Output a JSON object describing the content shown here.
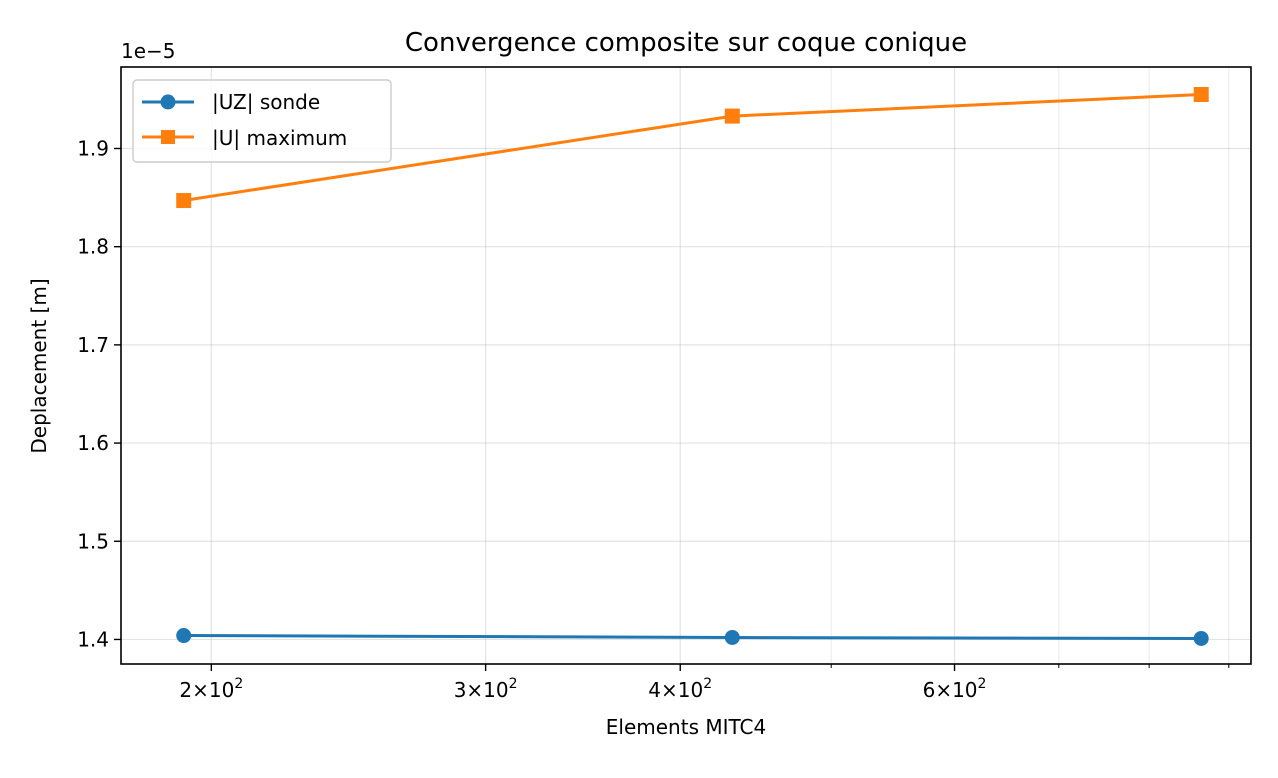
{
  "chart_data": {
    "type": "line",
    "title": "Convergence composite sur coque conique",
    "xlabel": "Elements MITC4",
    "ylabel": "Deplacement [m]",
    "x_scale": "log",
    "y_offset_text": "1e−5",
    "y_scale_factor": 1e-05,
    "xlim": [
      175,
      930
    ],
    "ylim": [
      1.375,
      1.983
    ],
    "x_major_ticks": [
      {
        "value": 200,
        "base": "2",
        "exp": "2"
      },
      {
        "value": 300,
        "base": "3",
        "exp": "2"
      },
      {
        "value": 400,
        "base": "4",
        "exp": "2"
      },
      {
        "value": 600,
        "base": "6",
        "exp": "2"
      }
    ],
    "x_minor_ticks": [
      500,
      700,
      800,
      900
    ],
    "y_ticks": [
      {
        "value": 1.4,
        "label": "1.4"
      },
      {
        "value": 1.5,
        "label": "1.5"
      },
      {
        "value": 1.6,
        "label": "1.6"
      },
      {
        "value": 1.7,
        "label": "1.7"
      },
      {
        "value": 1.8,
        "label": "1.8"
      },
      {
        "value": 1.9,
        "label": "1.9"
      }
    ],
    "grid": true,
    "legend_position": "upper-left",
    "x": [
      192,
      432,
      864
    ],
    "series": [
      {
        "name": "|UZ| sonde",
        "values": [
          1.404,
          1.402,
          1.401
        ],
        "color": "#1f77b4",
        "marker": "circle"
      },
      {
        "name": "|U| maximum",
        "values": [
          1.847,
          1.933,
          1.955
        ],
        "color": "#ff7f0e",
        "marker": "square"
      }
    ]
  }
}
